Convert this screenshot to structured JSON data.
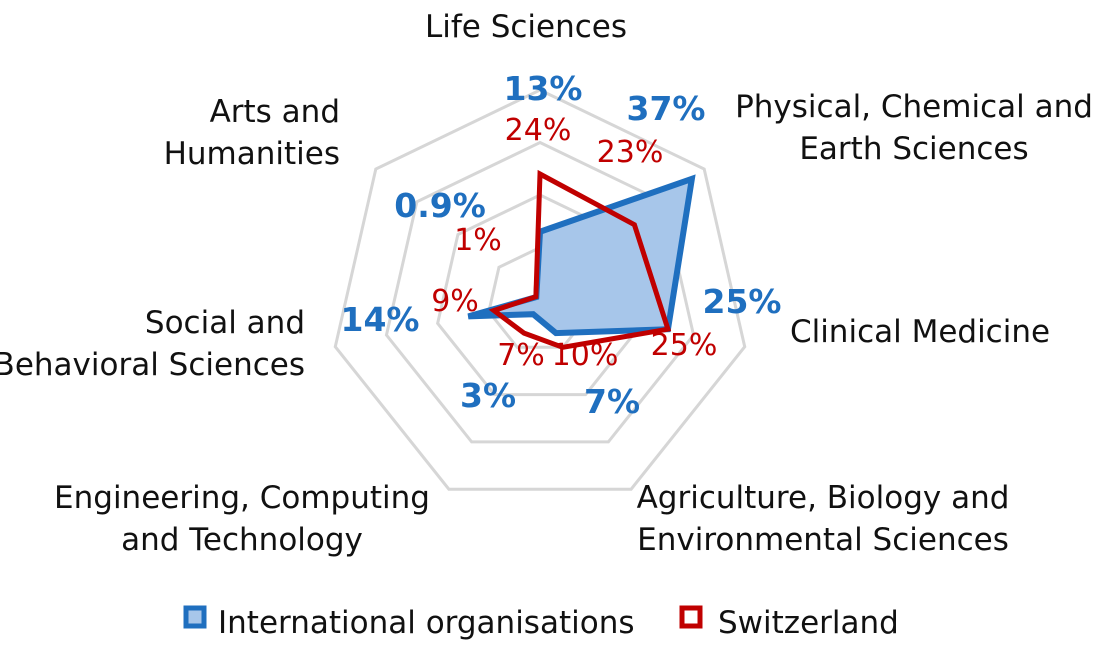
{
  "chart_data": {
    "type": "radar",
    "title": "",
    "axes": [
      "Life Sciences",
      "Physical, Chemical and Earth Sciences",
      "Clinical Medicine",
      "Agriculture, Biology and Environmental Sciences",
      "Engineering, Computing and Technology",
      "Social and Behavioral Sciences",
      "Arts and Humanities"
    ],
    "axis_label_lines": [
      [
        "Life Sciences"
      ],
      [
        "Physical, Chemical and",
        "Earth Sciences"
      ],
      [
        "Clinical Medicine"
      ],
      [
        "Agriculture, Biology and",
        "Environmental Sciences"
      ],
      [
        "Engineering, Computing",
        "and Technology"
      ],
      [
        "Social and",
        "Behavioral Sciences"
      ],
      [
        "Arts and",
        "Humanities"
      ]
    ],
    "series": [
      {
        "name": "International organisations",
        "values": [
          13,
          37,
          25,
          7,
          3,
          14,
          0.9
        ],
        "labels": [
          "13%",
          "37%",
          "25%",
          "7%",
          "3%",
          "14%",
          "0.9%"
        ],
        "color": "#1f6fbf",
        "fill": "#a7c6ea"
      },
      {
        "name": "Switzerland",
        "values": [
          24,
          23,
          25,
          10,
          7,
          9,
          1
        ],
        "labels": [
          "24%",
          "23%",
          "25%",
          "10%",
          "7%",
          "9%",
          "1%"
        ],
        "color": "#c00000"
      }
    ],
    "grid_levels": 4,
    "grid": true,
    "legend_position": "bottom"
  }
}
